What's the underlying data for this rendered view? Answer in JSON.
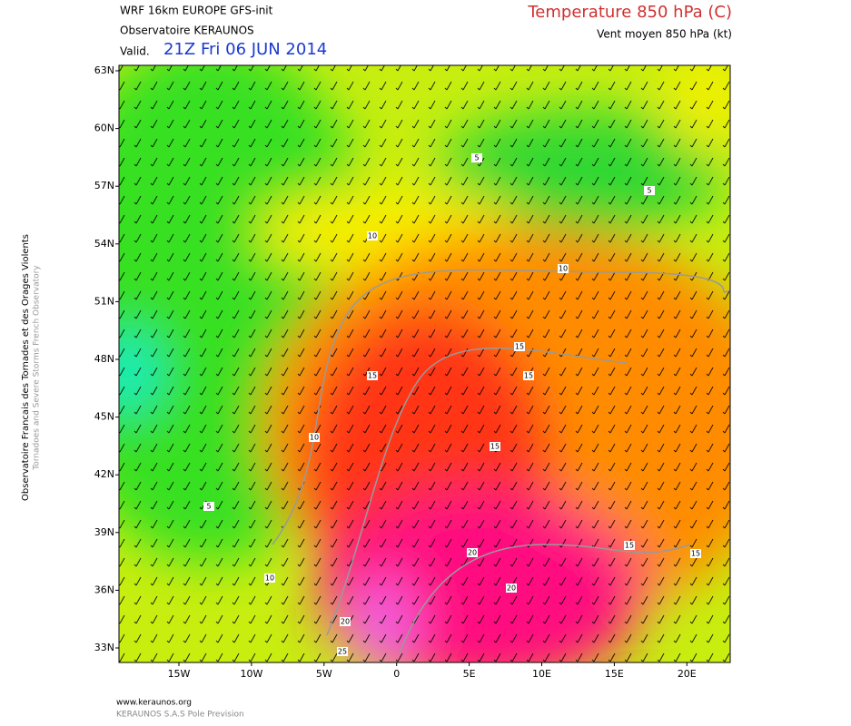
{
  "header": {
    "model": "WRF 16km EUROPE  GFS-init",
    "observatory": "Observatoire KERAUNOS",
    "valid_prefix": "Valid.",
    "valid_time": "21Z Fri 06 JUN 2014",
    "title": "Temperature 850 hPa (C)",
    "subtitle": "Vent moyen 850 hPa (kt)"
  },
  "side": {
    "line1": "Observatoire Francais des Tornades et des Orages Violents",
    "line2": "Tornadoes and Severe Storms French Observatory"
  },
  "lat_labels": [
    "63N",
    "60N",
    "57N",
    "54N",
    "51N",
    "48N",
    "45N",
    "42N",
    "39N",
    "36N",
    "33N"
  ],
  "lon_labels": [
    "15W",
    "10W",
    "5W",
    "0",
    "5E",
    "10E",
    "15E",
    "20E"
  ],
  "contour_labels": [
    "10",
    "10",
    "5",
    "5",
    "15",
    "15",
    "15",
    "15",
    "10",
    "5",
    "20",
    "20",
    "15",
    "15",
    "10",
    "20",
    "25"
  ],
  "footer": {
    "url": "www.keraunos.org",
    "company": "KERAUNOS S.A.S Pole Prevision"
  }
}
